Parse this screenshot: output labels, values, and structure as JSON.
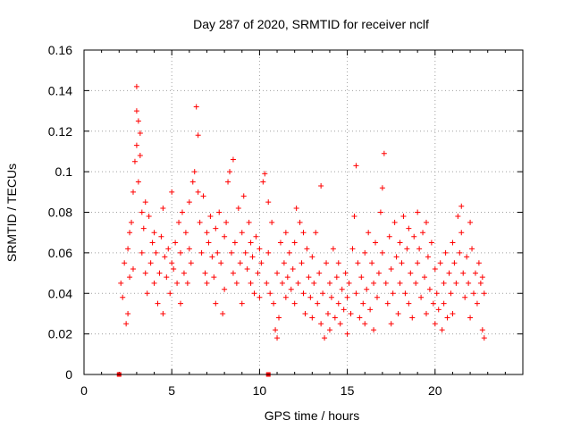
{
  "chart_data": {
    "type": "scatter",
    "title": "Day 287 of 2020, SRMTID for receiver nclf",
    "xlabel": "GPS time / hours",
    "ylabel": "SRMTID / TECUs",
    "xlim": [
      0,
      25
    ],
    "ylim": [
      0,
      0.16
    ],
    "xticks": [
      0,
      5,
      10,
      15,
      20
    ],
    "xtick_labels": [
      "0",
      "5",
      "10",
      "15",
      "20"
    ],
    "yticks": [
      0,
      0.02,
      0.04,
      0.06,
      0.08,
      0.1,
      0.12,
      0.14,
      0.16
    ],
    "ytick_labels": [
      "0",
      "0.02",
      "0.04",
      "0.06",
      "0.08",
      "0.1",
      "0.12",
      "0.14",
      "0.16"
    ],
    "grid": true,
    "marker": "plus",
    "color": "#ff0000",
    "zero_markers": [
      {
        "x": 2.0,
        "y": 0
      },
      {
        "x": 10.5,
        "y": 0
      }
    ],
    "series": [
      {
        "points": [
          [
            2.1,
            0.045
          ],
          [
            2.2,
            0.038
          ],
          [
            2.3,
            0.055
          ],
          [
            2.4,
            0.025
          ],
          [
            2.5,
            0.062
          ],
          [
            2.5,
            0.03
          ],
          [
            2.6,
            0.07
          ],
          [
            2.6,
            0.048
          ],
          [
            2.7,
            0.075
          ],
          [
            2.8,
            0.09
          ],
          [
            2.8,
            0.052
          ],
          [
            2.9,
            0.105
          ],
          [
            3.0,
            0.113
          ],
          [
            3.0,
            0.142
          ],
          [
            3.0,
            0.13
          ],
          [
            3.1,
            0.125
          ],
          [
            3.1,
            0.095
          ],
          [
            3.2,
            0.108
          ],
          [
            3.2,
            0.119
          ],
          [
            3.3,
            0.08
          ],
          [
            3.3,
            0.06
          ],
          [
            3.4,
            0.072
          ],
          [
            3.5,
            0.05
          ],
          [
            3.5,
            0.085
          ],
          [
            3.6,
            0.04
          ],
          [
            3.7,
            0.078
          ],
          [
            3.8,
            0.055
          ],
          [
            3.9,
            0.065
          ],
          [
            4.0,
            0.045
          ],
          [
            4.0,
            0.07
          ],
          [
            4.1,
            0.06
          ],
          [
            4.2,
            0.035
          ],
          [
            4.3,
            0.05
          ],
          [
            4.4,
            0.068
          ],
          [
            4.5,
            0.082
          ],
          [
            4.5,
            0.03
          ],
          [
            4.6,
            0.058
          ],
          [
            4.7,
            0.048
          ],
          [
            4.8,
            0.062
          ],
          [
            4.9,
            0.04
          ],
          [
            5.0,
            0.09
          ],
          [
            5.0,
            0.055
          ],
          [
            5.1,
            0.052
          ],
          [
            5.2,
            0.065
          ],
          [
            5.3,
            0.045
          ],
          [
            5.4,
            0.075
          ],
          [
            5.5,
            0.06
          ],
          [
            5.5,
            0.035
          ],
          [
            5.6,
            0.08
          ],
          [
            5.7,
            0.05
          ],
          [
            5.8,
            0.07
          ],
          [
            5.9,
            0.045
          ],
          [
            6.0,
            0.085
          ],
          [
            6.0,
            0.062
          ],
          [
            6.1,
            0.055
          ],
          [
            6.2,
            0.095
          ],
          [
            6.3,
            0.1
          ],
          [
            6.4,
            0.132
          ],
          [
            6.5,
            0.118
          ],
          [
            6.5,
            0.09
          ],
          [
            6.6,
            0.075
          ],
          [
            6.7,
            0.06
          ],
          [
            6.8,
            0.088
          ],
          [
            6.9,
            0.05
          ],
          [
            7.0,
            0.07
          ],
          [
            7.0,
            0.045
          ],
          [
            7.1,
            0.065
          ],
          [
            7.2,
            0.078
          ],
          [
            7.3,
            0.058
          ],
          [
            7.4,
            0.048
          ],
          [
            7.5,
            0.072
          ],
          [
            7.5,
            0.035
          ],
          [
            7.6,
            0.06
          ],
          [
            7.7,
            0.08
          ],
          [
            7.8,
            0.055
          ],
          [
            7.9,
            0.03
          ],
          [
            8.0,
            0.068
          ],
          [
            8.0,
            0.042
          ],
          [
            8.1,
            0.075
          ],
          [
            8.2,
            0.095
          ],
          [
            8.3,
            0.1
          ],
          [
            8.4,
            0.06
          ],
          [
            8.5,
            0.106
          ],
          [
            8.5,
            0.05
          ],
          [
            8.6,
            0.065
          ],
          [
            8.7,
            0.045
          ],
          [
            8.8,
            0.082
          ],
          [
            8.9,
            0.055
          ],
          [
            9.0,
            0.07
          ],
          [
            9.0,
            0.035
          ],
          [
            9.1,
            0.088
          ],
          [
            9.2,
            0.06
          ],
          [
            9.3,
            0.052
          ],
          [
            9.4,
            0.075
          ],
          [
            9.5,
            0.045
          ],
          [
            9.5,
            0.065
          ],
          [
            9.6,
            0.058
          ],
          [
            9.7,
            0.04
          ],
          [
            9.8,
            0.068
          ],
          [
            9.9,
            0.05
          ],
          [
            10.0,
            0.062
          ],
          [
            10.0,
            0.038
          ],
          [
            10.1,
            0.055
          ],
          [
            10.2,
            0.095
          ],
          [
            10.3,
            0.099
          ],
          [
            10.4,
            0.045
          ],
          [
            10.5,
            0.085
          ],
          [
            10.5,
            0.06
          ],
          [
            10.6,
            0.04
          ],
          [
            10.7,
            0.075
          ],
          [
            10.8,
            0.035
          ],
          [
            10.9,
            0.022
          ],
          [
            11.0,
            0.018
          ],
          [
            11.0,
            0.05
          ],
          [
            11.1,
            0.028
          ],
          [
            11.2,
            0.065
          ],
          [
            11.3,
            0.045
          ],
          [
            11.4,
            0.055
          ],
          [
            11.5,
            0.038
          ],
          [
            11.5,
            0.07
          ],
          [
            11.6,
            0.048
          ],
          [
            11.7,
            0.06
          ],
          [
            11.8,
            0.042
          ],
          [
            11.9,
            0.052
          ],
          [
            12.0,
            0.065
          ],
          [
            12.0,
            0.035
          ],
          [
            12.1,
            0.082
          ],
          [
            12.2,
            0.045
          ],
          [
            12.3,
            0.075
          ],
          [
            12.4,
            0.055
          ],
          [
            12.5,
            0.04
          ],
          [
            12.5,
            0.07
          ],
          [
            12.6,
            0.03
          ],
          [
            12.7,
            0.062
          ],
          [
            12.8,
            0.048
          ],
          [
            12.9,
            0.038
          ],
          [
            13.0,
            0.058
          ],
          [
            13.0,
            0.028
          ],
          [
            13.1,
            0.045
          ],
          [
            13.2,
            0.07
          ],
          [
            13.3,
            0.035
          ],
          [
            13.4,
            0.05
          ],
          [
            13.5,
            0.093
          ],
          [
            13.5,
            0.025
          ],
          [
            13.6,
            0.04
          ],
          [
            13.7,
            0.018
          ],
          [
            13.8,
            0.055
          ],
          [
            13.9,
            0.03
          ],
          [
            14.0,
            0.045
          ],
          [
            14.0,
            0.022
          ],
          [
            14.1,
            0.038
          ],
          [
            14.2,
            0.062
          ],
          [
            14.3,
            0.028
          ],
          [
            14.4,
            0.048
          ],
          [
            14.5,
            0.035
          ],
          [
            14.5,
            0.055
          ],
          [
            14.6,
            0.025
          ],
          [
            14.7,
            0.042
          ],
          [
            14.8,
            0.032
          ],
          [
            14.9,
            0.05
          ],
          [
            15.0,
            0.038
          ],
          [
            15.0,
            0.02
          ],
          [
            15.1,
            0.045
          ],
          [
            15.2,
            0.03
          ],
          [
            15.3,
            0.062
          ],
          [
            15.4,
            0.078
          ],
          [
            15.5,
            0.103
          ],
          [
            15.5,
            0.04
          ],
          [
            15.6,
            0.055
          ],
          [
            15.7,
            0.028
          ],
          [
            15.8,
            0.048
          ],
          [
            15.9,
            0.035
          ],
          [
            16.0,
            0.06
          ],
          [
            16.0,
            0.025
          ],
          [
            16.1,
            0.042
          ],
          [
            16.2,
            0.07
          ],
          [
            16.3,
            0.032
          ],
          [
            16.4,
            0.055
          ],
          [
            16.5,
            0.045
          ],
          [
            16.5,
            0.022
          ],
          [
            16.6,
            0.065
          ],
          [
            16.7,
            0.038
          ],
          [
            16.8,
            0.05
          ],
          [
            16.9,
            0.08
          ],
          [
            17.0,
            0.092
          ],
          [
            17.0,
            0.06
          ],
          [
            17.1,
            0.109
          ],
          [
            17.2,
            0.045
          ],
          [
            17.3,
            0.035
          ],
          [
            17.4,
            0.068
          ],
          [
            17.5,
            0.052
          ],
          [
            17.5,
            0.025
          ],
          [
            17.6,
            0.04
          ],
          [
            17.7,
            0.075
          ],
          [
            17.8,
            0.058
          ],
          [
            17.9,
            0.03
          ],
          [
            18.0,
            0.065
          ],
          [
            18.0,
            0.045
          ],
          [
            18.1,
            0.055
          ],
          [
            18.2,
            0.078
          ],
          [
            18.3,
            0.04
          ],
          [
            18.4,
            0.062
          ],
          [
            18.5,
            0.035
          ],
          [
            18.5,
            0.072
          ],
          [
            18.6,
            0.05
          ],
          [
            18.7,
            0.028
          ],
          [
            18.8,
            0.068
          ],
          [
            18.9,
            0.045
          ],
          [
            19.0,
            0.08
          ],
          [
            19.0,
            0.055
          ],
          [
            19.1,
            0.062
          ],
          [
            19.2,
            0.038
          ],
          [
            19.3,
            0.07
          ],
          [
            19.4,
            0.048
          ],
          [
            19.5,
            0.075
          ],
          [
            19.5,
            0.03
          ],
          [
            19.6,
            0.058
          ],
          [
            19.7,
            0.042
          ],
          [
            19.8,
            0.065
          ],
          [
            19.9,
            0.035
          ],
          [
            20.0,
            0.052
          ],
          [
            20.0,
            0.025
          ],
          [
            20.1,
            0.04
          ],
          [
            20.2,
            0.032
          ],
          [
            20.3,
            0.055
          ],
          [
            20.4,
            0.022
          ],
          [
            20.5,
            0.045
          ],
          [
            20.5,
            0.035
          ],
          [
            20.6,
            0.06
          ],
          [
            20.7,
            0.028
          ],
          [
            20.8,
            0.05
          ],
          [
            20.9,
            0.04
          ],
          [
            21.0,
            0.065
          ],
          [
            21.0,
            0.03
          ],
          [
            21.1,
            0.055
          ],
          [
            21.2,
            0.045
          ],
          [
            21.3,
            0.078
          ],
          [
            21.4,
            0.06
          ],
          [
            21.5,
            0.07
          ],
          [
            21.5,
            0.083
          ],
          [
            21.6,
            0.05
          ],
          [
            21.7,
            0.038
          ],
          [
            21.8,
            0.058
          ],
          [
            21.9,
            0.045
          ],
          [
            22.0,
            0.075
          ],
          [
            22.0,
            0.028
          ],
          [
            22.1,
            0.062
          ],
          [
            22.2,
            0.04
          ],
          [
            22.3,
            0.05
          ],
          [
            22.4,
            0.035
          ],
          [
            22.5,
            0.055
          ],
          [
            22.6,
            0.045
          ],
          [
            22.7,
            0.022
          ],
          [
            22.8,
            0.018
          ],
          [
            22.8,
            0.04
          ],
          [
            22.7,
            0.048
          ]
        ]
      }
    ]
  }
}
